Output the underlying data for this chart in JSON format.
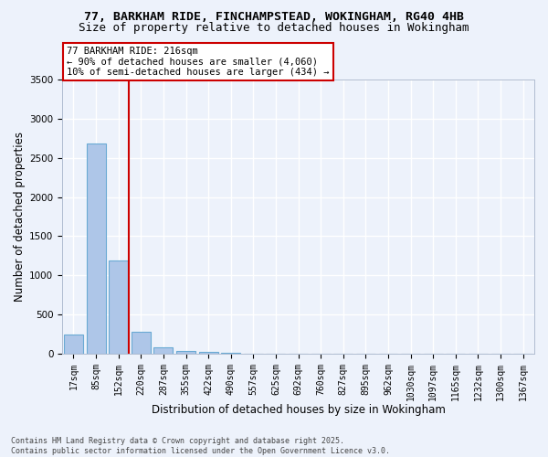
{
  "title_line1": "77, BARKHAM RIDE, FINCHAMPSTEAD, WOKINGHAM, RG40 4HB",
  "title_line2": "Size of property relative to detached houses in Wokingham",
  "xlabel": "Distribution of detached houses by size in Wokingham",
  "ylabel": "Number of detached properties",
  "categories": [
    "17sqm",
    "85sqm",
    "152sqm",
    "220sqm",
    "287sqm",
    "355sqm",
    "422sqm",
    "490sqm",
    "557sqm",
    "625sqm",
    "692sqm",
    "760sqm",
    "827sqm",
    "895sqm",
    "962sqm",
    "1030sqm",
    "1097sqm",
    "1165sqm",
    "1232sqm",
    "1300sqm",
    "1367sqm"
  ],
  "values": [
    250,
    2680,
    1190,
    278,
    85,
    38,
    18,
    8,
    0,
    0,
    0,
    0,
    0,
    0,
    0,
    0,
    0,
    0,
    0,
    0,
    0
  ],
  "bar_color": "#aec6e8",
  "bar_edge_color": "#6aaad4",
  "vline_color": "#cc0000",
  "vline_x_index": 2.48,
  "marker_label": "77 BARKHAM RIDE: 216sqm",
  "annotation_line1": "← 90% of detached houses are smaller (4,060)",
  "annotation_line2": "10% of semi-detached houses are larger (434) →",
  "ylim": [
    0,
    3500
  ],
  "yticks": [
    0,
    500,
    1000,
    1500,
    2000,
    2500,
    3000,
    3500
  ],
  "background_color": "#edf2fb",
  "grid_color": "#ffffff",
  "footer_line1": "Contains HM Land Registry data © Crown copyright and database right 2025.",
  "footer_line2": "Contains public sector information licensed under the Open Government Licence v3.0.",
  "title_fontsize": 9.5,
  "subtitle_fontsize": 9,
  "axis_label_fontsize": 8.5,
  "tick_fontsize": 7,
  "footer_fontsize": 6,
  "annotation_fontsize": 7.5
}
